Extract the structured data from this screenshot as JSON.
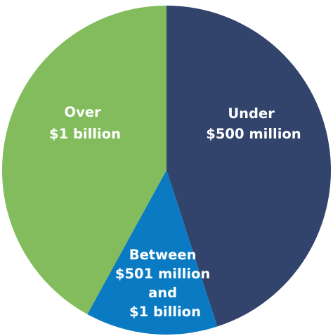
{
  "chart_data": {
    "type": "pie",
    "start_angle_deg": 0,
    "direction": "clockwise",
    "slices": [
      {
        "label_lines": [
          "Under",
          "$500 million"
        ],
        "value": 45,
        "color": "#32436c"
      },
      {
        "label_lines": [
          "Between",
          "$501 million",
          "and",
          "$1 billion"
        ],
        "value": 13,
        "color": "#0a7bc2"
      },
      {
        "label_lines": [
          "Over",
          "$1 billion"
        ],
        "value": 42,
        "color": "#82bc5c"
      }
    ]
  }
}
